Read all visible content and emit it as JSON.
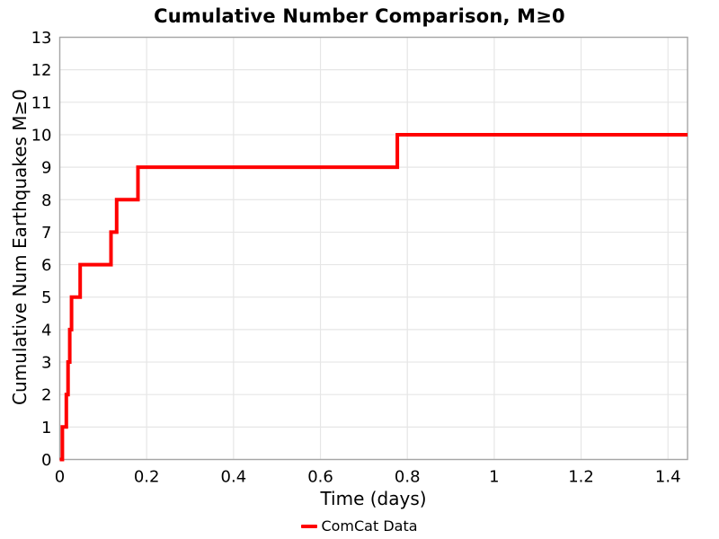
{
  "figure": {
    "background": "#ffffff"
  },
  "chart_data": {
    "type": "line",
    "subtype": "step-post",
    "title": "Cumulative Number Comparison, M≥0",
    "xlabel": "Time (days)",
    "ylabel": "Cumulative Num Earthquakes M≥0",
    "xlim": [
      0,
      1.445
    ],
    "ylim": [
      0,
      13
    ],
    "xticks": {
      "values": [
        0,
        0.2,
        0.4,
        0.6,
        0.8,
        1,
        1.2,
        1.4
      ],
      "labels": [
        "0",
        "0.2",
        "0.4",
        "0.6",
        "0.8",
        "1",
        "1.2",
        "1.4"
      ]
    },
    "yticks": {
      "values": [
        0,
        1,
        2,
        3,
        4,
        5,
        6,
        7,
        8,
        9,
        10,
        11,
        12,
        13
      ],
      "labels": [
        "0",
        "1",
        "2",
        "3",
        "4",
        "5",
        "6",
        "7",
        "8",
        "9",
        "10",
        "11",
        "12",
        "13"
      ]
    },
    "grid": true,
    "legend": {
      "position": "bottom-center",
      "entries": [
        {
          "label": "ComCat Data",
          "color": "#ff0000"
        }
      ]
    },
    "series": [
      {
        "name": "ComCat Data",
        "color": "#ff0000",
        "line_width": 4,
        "step": "post",
        "points": [
          [
            0,
            0
          ],
          [
            0.006,
            1
          ],
          [
            0.015,
            2
          ],
          [
            0.019,
            3
          ],
          [
            0.023,
            4
          ],
          [
            0.027,
            5
          ],
          [
            0.047,
            6
          ],
          [
            0.118,
            7
          ],
          [
            0.131,
            8
          ],
          [
            0.18,
            9
          ],
          [
            0.777,
            10
          ],
          [
            1.445,
            10
          ]
        ]
      }
    ],
    "colors": {
      "line": "#ff0000",
      "grid": "#e6e6e6",
      "spine": "#a6a6a6",
      "text": "#000000"
    }
  }
}
